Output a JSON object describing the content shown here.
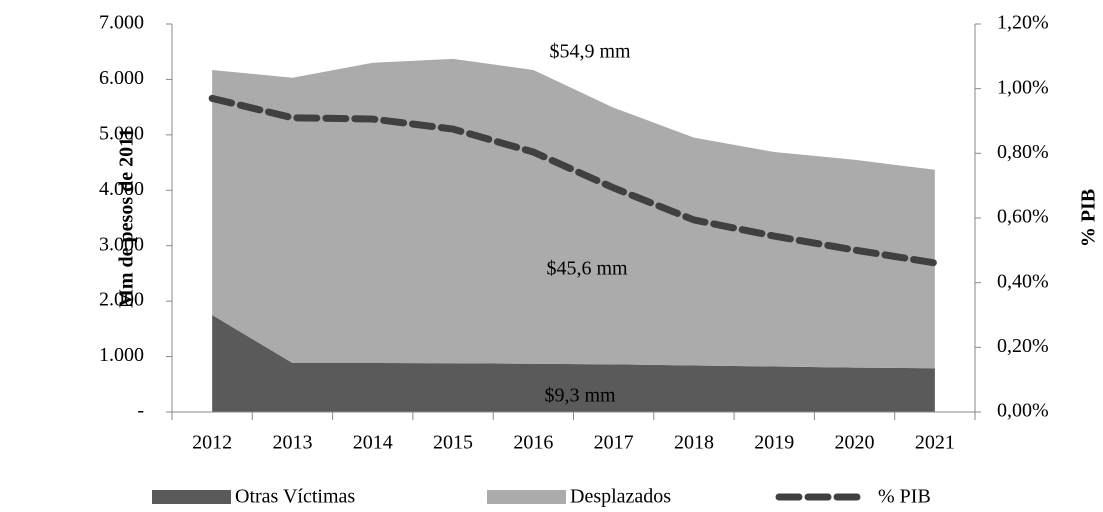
{
  "chart_data": {
    "type": "stacked_area_line",
    "categories": [
      "2012",
      "2013",
      "2014",
      "2015",
      "2016",
      "2017",
      "2018",
      "2019",
      "2020",
      "2021"
    ],
    "series": [
      {
        "name": "Otras Víctimas",
        "color": "#5a5a5a",
        "values": [
          1750,
          885,
          885,
          880,
          870,
          860,
          840,
          820,
          800,
          790
        ]
      },
      {
        "name": "Desplazados",
        "color": "#ababab",
        "values": [
          4420,
          5145,
          5415,
          5490,
          5300,
          4630,
          4110,
          3870,
          3750,
          3580
        ]
      },
      {
        "name": "% PIB",
        "color": "#404040",
        "axis": "y2",
        "values": [
          0.97,
          0.91,
          0.906,
          0.875,
          0.804,
          0.693,
          0.594,
          0.544,
          0.501,
          0.461
        ]
      }
    ],
    "ylabel": "Mm de pesos de 2011",
    "y2label": "% PIB",
    "ylim": [
      0,
      7000
    ],
    "yticks": [
      {
        "value": 0,
        "label": "-"
      },
      {
        "value": 1000,
        "label": "1.000"
      },
      {
        "value": 2000,
        "label": "2.000"
      },
      {
        "value": 3000,
        "label": "3.000"
      },
      {
        "value": 4000,
        "label": "4.000"
      },
      {
        "value": 5000,
        "label": "5.000"
      },
      {
        "value": 6000,
        "label": "6.000"
      },
      {
        "value": 7000,
        "label": "7.000"
      }
    ],
    "y2lim": [
      0,
      1.2
    ],
    "y2ticks": [
      {
        "value": 0,
        "label": "0,00%"
      },
      {
        "value": 0.2,
        "label": "0,20%"
      },
      {
        "value": 0.4,
        "label": "0,40%"
      },
      {
        "value": 0.6,
        "label": "0,60%"
      },
      {
        "value": 0.8,
        "label": "0,80%"
      },
      {
        "value": 1.0,
        "label": "1,00%"
      },
      {
        "value": 1.2,
        "label": "1,20%"
      }
    ],
    "annotations": [
      "$54,9 mm",
      "$45,6 mm",
      "$9,3 mm"
    ],
    "legend": "bottom"
  }
}
